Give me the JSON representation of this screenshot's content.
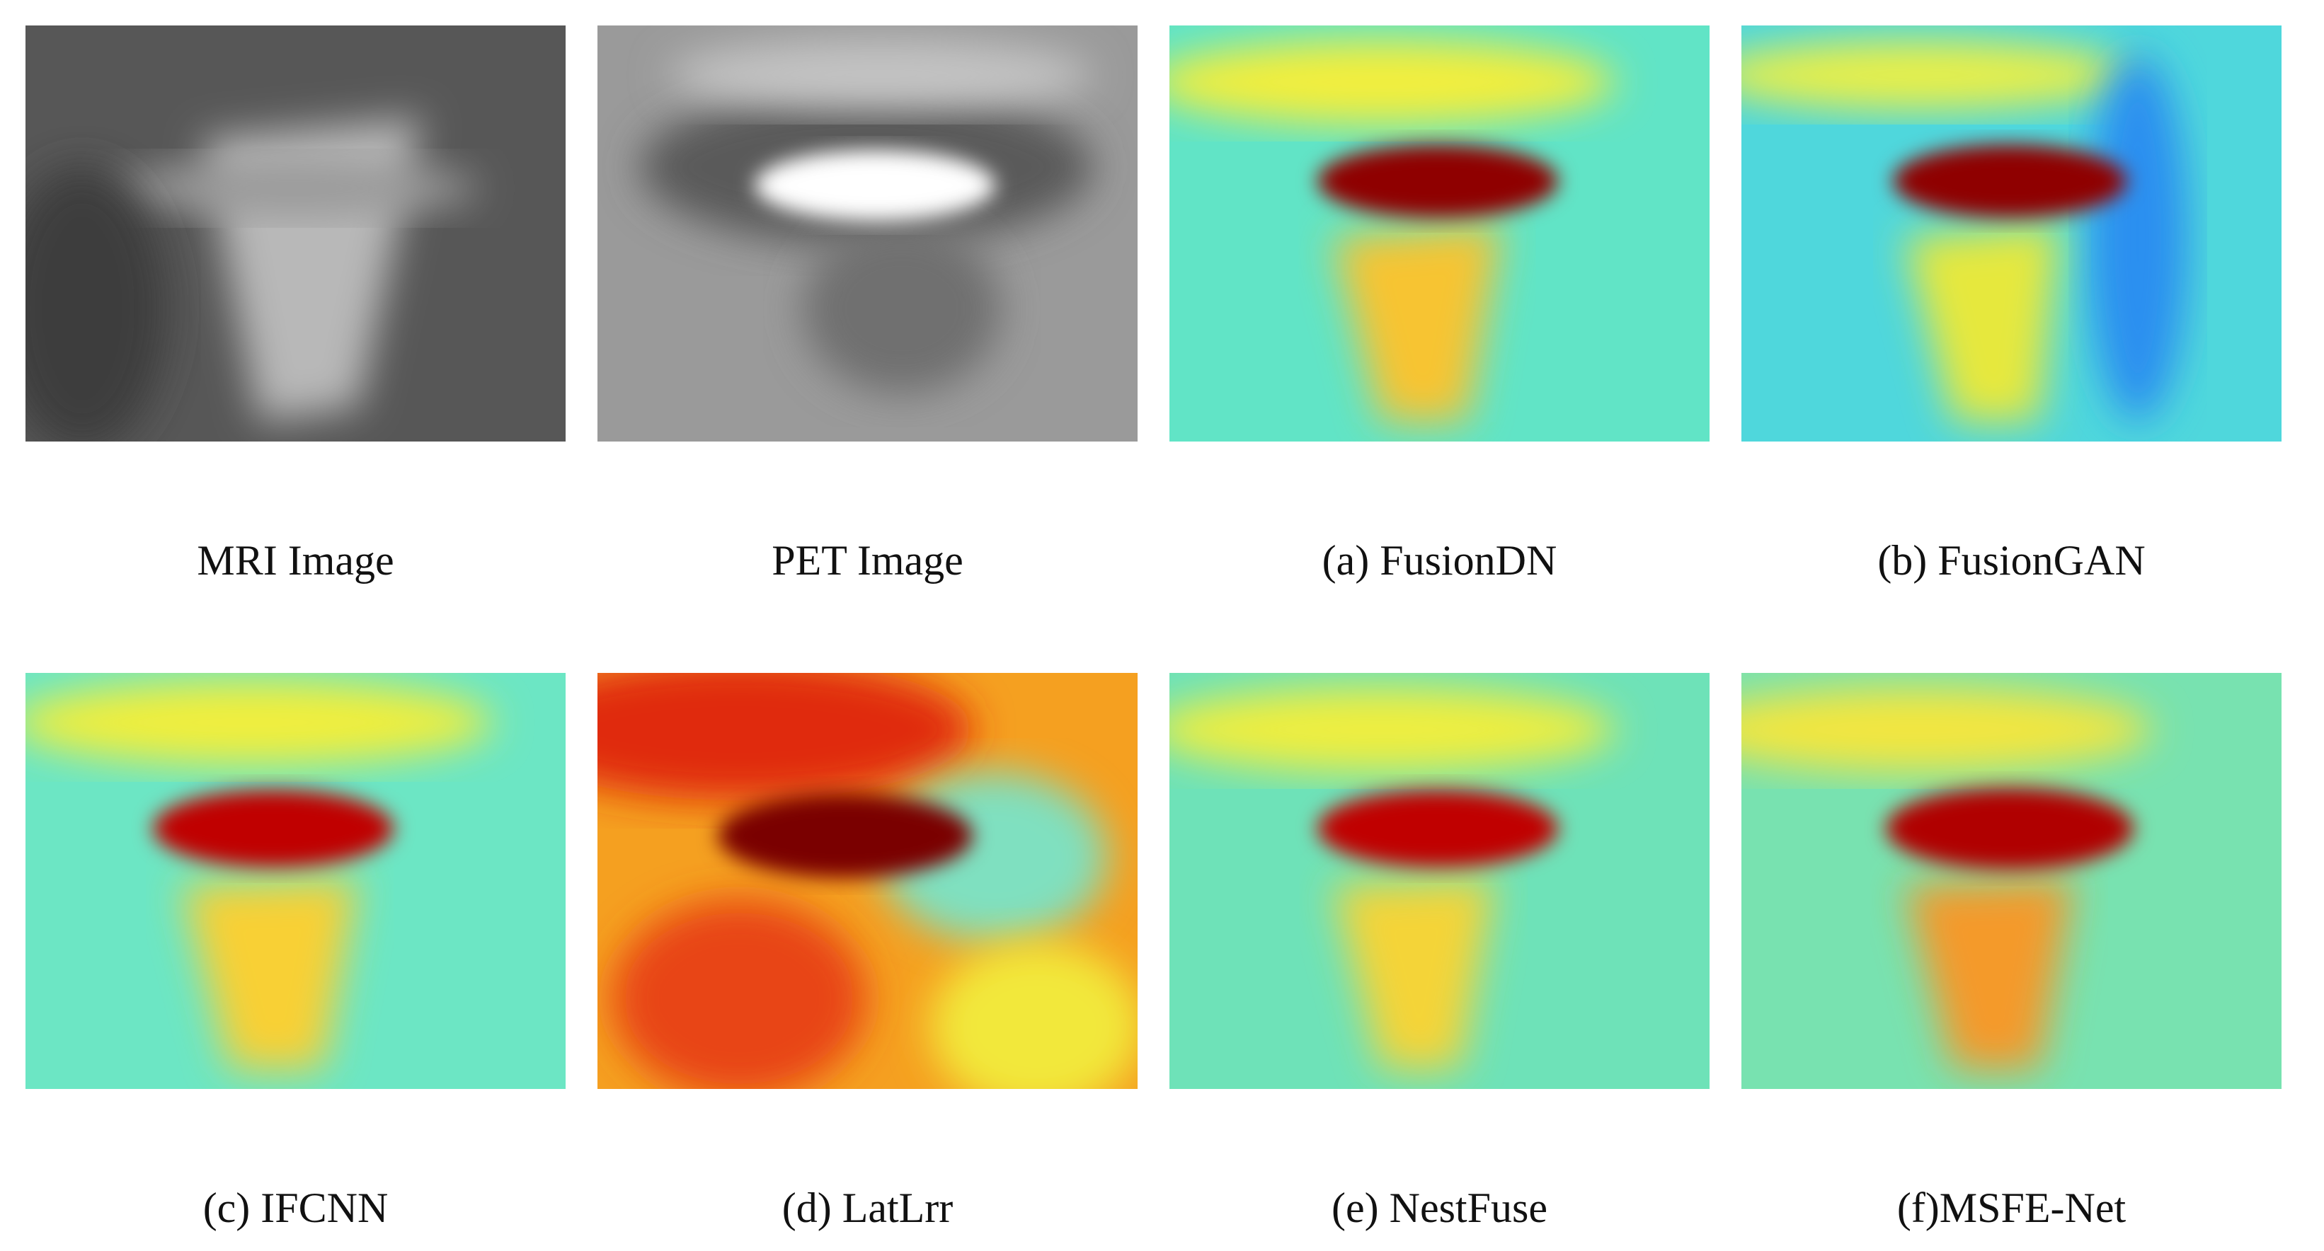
{
  "panels": [
    {
      "caption": "MRI Image"
    },
    {
      "caption": "PET Image"
    },
    {
      "caption": "(a) FusionDN"
    },
    {
      "caption": "(b) FusionGAN"
    },
    {
      "caption": "(c) IFCNN"
    },
    {
      "caption": "(d) LatLrr"
    },
    {
      "caption": "(e) NestFuse"
    },
    {
      "caption": "(f)MSFE-Net"
    }
  ]
}
